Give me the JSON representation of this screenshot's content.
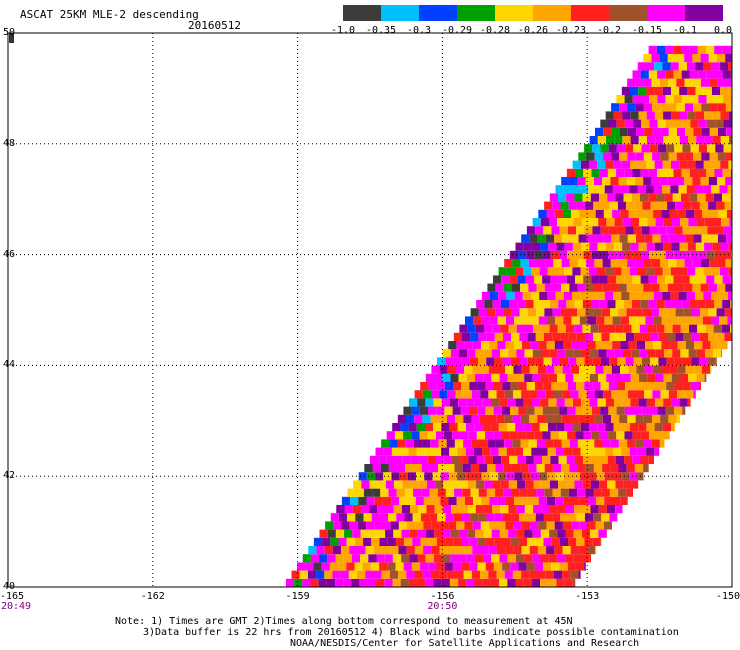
{
  "title": "ASCAT 25KM MLE-2 descending",
  "date": "20160512",
  "colorbar": {
    "colors": [
      "#3c3c3c",
      "#00bfff",
      "#0040ff",
      "#00a000",
      "#ffd700",
      "#ffa500",
      "#ff2020",
      "#a0522d",
      "#ff00ff",
      "#8000a0"
    ],
    "tick_labels": [
      "-1.0",
      "-0.35",
      "-0.3",
      "-0.29",
      "-0.28",
      "-0.26",
      "-0.23",
      "-0.2",
      "-0.15",
      "-0.1",
      "0.0"
    ]
  },
  "axes": {
    "lat_labels": [
      "50",
      "48",
      "46",
      "44",
      "42",
      "40"
    ],
    "lon_labels": [
      "-165",
      "-162",
      "-159",
      "-156",
      "-153",
      "-150"
    ],
    "time_labels": [
      {
        "text": "20:49",
        "lon": -165
      },
      {
        "text": "20:50",
        "lon": -156
      }
    ],
    "lon_range": [
      -165,
      -150
    ],
    "lat_range": [
      40,
      50
    ]
  },
  "notes": {
    "line1": "Note: 1) Times are GMT 2)Times along bottom correspond to measurement at 45N",
    "line2": "3)Data buffer is 22 hrs from 20160512 4) Black wind barbs indicate possible contamination",
    "line3": "NOAA/NESDIS/Center for Satellite Applications and Research"
  },
  "swath": {
    "type": "heatmap",
    "description_key": "MLE-2 value grid over satellite swath",
    "left_edge": [
      [
        -159.3,
        40.0
      ],
      [
        -154.6,
        46.0
      ],
      [
        -153.0,
        48.0
      ],
      [
        -151.5,
        50.0
      ]
    ],
    "right_edge": [
      [
        -153.3,
        40.0
      ],
      [
        -150.0,
        44.5
      ],
      [
        -150.0,
        50.0
      ]
    ]
  }
}
